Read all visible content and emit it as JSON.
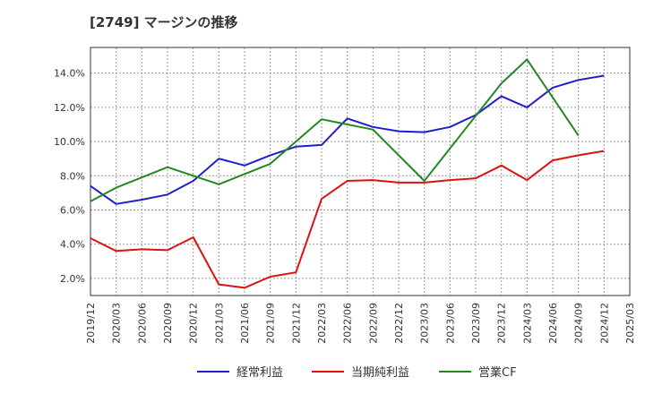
{
  "chart_data": {
    "type": "line",
    "title": "[2749]  マージンの推移",
    "x": [
      "2019/12",
      "2020/03",
      "2020/06",
      "2020/09",
      "2020/12",
      "2021/03",
      "2021/06",
      "2021/09",
      "2021/12",
      "2022/03",
      "2022/06",
      "2022/09",
      "2022/12",
      "2023/03",
      "2023/06",
      "2023/09",
      "2023/12",
      "2024/03",
      "2024/06",
      "2024/09",
      "2024/12",
      "2025/03"
    ],
    "ylim": [
      1.0,
      15.5
    ],
    "yticks": [
      "2.0%",
      "4.0%",
      "6.0%",
      "8.0%",
      "10.0%",
      "12.0%",
      "14.0%"
    ],
    "ytick_values": [
      2,
      4,
      6,
      8,
      10,
      12,
      14
    ],
    "grid": true,
    "legend_position": "bottom",
    "series": [
      {
        "name": "経常利益",
        "color": "#1f1fcc",
        "values": [
          7.4,
          6.35,
          6.6,
          6.9,
          7.7,
          9.0,
          8.6,
          9.2,
          9.7,
          9.8,
          11.35,
          10.85,
          10.6,
          10.55,
          10.85,
          11.55,
          12.65,
          12.0,
          13.15,
          13.6,
          13.85,
          null
        ]
      },
      {
        "name": "当期純利益",
        "color": "#dd1111",
        "values": [
          4.35,
          3.6,
          3.7,
          3.65,
          4.4,
          1.65,
          1.45,
          2.1,
          2.35,
          6.65,
          7.7,
          7.75,
          7.6,
          7.6,
          7.75,
          7.85,
          8.6,
          7.75,
          8.9,
          9.2,
          9.45,
          null
        ]
      },
      {
        "name": "営業CF",
        "color": "#228822",
        "values": [
          6.5,
          7.3,
          null,
          8.5,
          null,
          7.5,
          null,
          8.7,
          null,
          11.3,
          null,
          10.7,
          null,
          7.7,
          null,
          null,
          13.4,
          14.8,
          null,
          10.35,
          null,
          null
        ]
      }
    ]
  }
}
